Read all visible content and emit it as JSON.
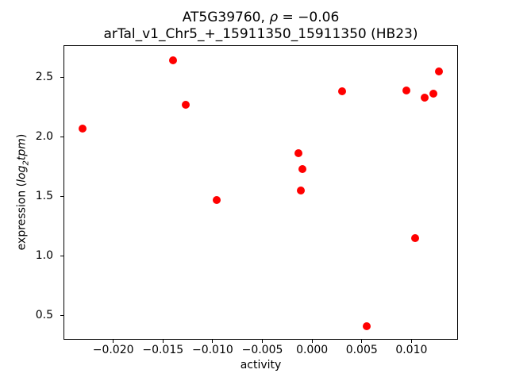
{
  "figure": {
    "background": "#ffffff",
    "title_line1": {
      "part1": "AT5G39760, ",
      "rho": "ρ",
      "part2": " = −0.06"
    },
    "title_line2": "arTal_v1_Chr5_+_15911350_15911350 (HB23)",
    "xlabel": "activity",
    "ylabel": {
      "prefix": "expression (",
      "log": "log",
      "sub": "2",
      "tpm": "tpm",
      "suffix": ")"
    }
  },
  "chart_data": {
    "type": "scatter",
    "title": "AT5G39760, ρ = −0.06",
    "subtitle": "arTal_v1_Chr5_+_15911350_15911350 (HB23)",
    "xlabel": "activity",
    "ylabel": "expression (log2 tpm)",
    "xlim": [
      -0.025,
      0.0146
    ],
    "ylim": [
      0.3,
      2.77
    ],
    "grid": false,
    "legend": false,
    "marker_color": "#ff0000",
    "x_ticks": [
      {
        "value": -0.02,
        "label": "−0.020"
      },
      {
        "value": -0.015,
        "label": "−0.015"
      },
      {
        "value": -0.01,
        "label": "−0.010"
      },
      {
        "value": -0.005,
        "label": "−0.005"
      },
      {
        "value": 0.0,
        "label": "0.000"
      },
      {
        "value": 0.005,
        "label": "0.005"
      },
      {
        "value": 0.01,
        "label": "0.010"
      }
    ],
    "y_ticks": [
      {
        "value": 0.5,
        "label": "0.5"
      },
      {
        "value": 1.0,
        "label": "1.0"
      },
      {
        "value": 1.5,
        "label": "1.5"
      },
      {
        "value": 2.0,
        "label": "2.0"
      },
      {
        "value": 2.5,
        "label": "2.5"
      }
    ],
    "points": [
      {
        "x": -0.0231,
        "y": 2.07
      },
      {
        "x": -0.014,
        "y": 2.64
      },
      {
        "x": -0.0127,
        "y": 2.27
      },
      {
        "x": -0.0096,
        "y": 1.47
      },
      {
        "x": -0.0014,
        "y": 1.86
      },
      {
        "x": -0.0011,
        "y": 1.55
      },
      {
        "x": -0.001,
        "y": 1.73
      },
      {
        "x": 0.003,
        "y": 2.38
      },
      {
        "x": 0.0055,
        "y": 0.41
      },
      {
        "x": 0.0095,
        "y": 2.39
      },
      {
        "x": 0.0104,
        "y": 1.15
      },
      {
        "x": 0.0113,
        "y": 2.33
      },
      {
        "x": 0.0122,
        "y": 2.36
      },
      {
        "x": 0.0128,
        "y": 2.55
      }
    ]
  }
}
